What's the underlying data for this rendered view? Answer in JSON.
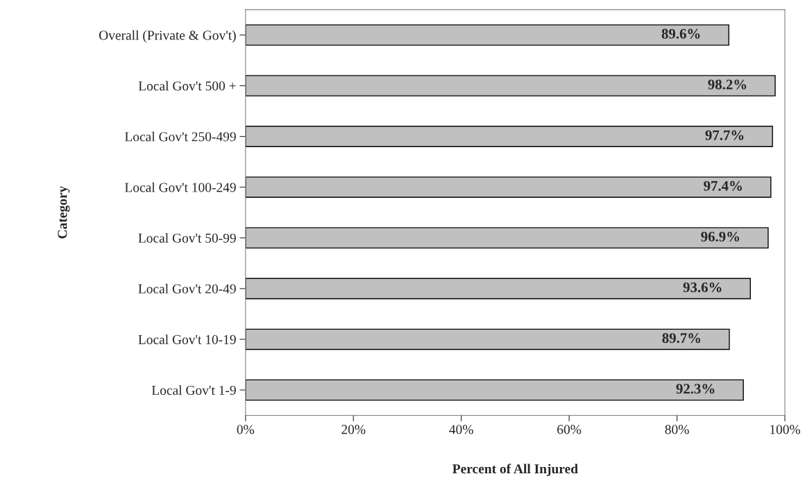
{
  "chart_data": {
    "type": "bar",
    "orientation": "horizontal",
    "xlabel": "Percent of All Injured",
    "ylabel": "Category",
    "categories": [
      "Overall (Private & Gov't)",
      "Local Gov't 500 +",
      "Local Gov't 250-499",
      "Local Gov't 100-249",
      "Local Gov't 50-99",
      "Local Gov't 20-49",
      "Local Gov't 10-19",
      "Local Gov't 1-9"
    ],
    "values": [
      89.6,
      98.2,
      97.7,
      97.4,
      96.9,
      93.6,
      89.7,
      92.3
    ],
    "value_labels": [
      "89.6%",
      "98.2%",
      "97.7%",
      "97.4%",
      "96.9%",
      "93.6%",
      "89.7%",
      "92.3%"
    ],
    "color": "#c0c0c0",
    "xlim": [
      0,
      100
    ],
    "xticks": [
      {
        "value": 0,
        "label": "0%"
      },
      {
        "value": 20,
        "label": "20%"
      },
      {
        "value": 40,
        "label": "40%"
      },
      {
        "value": 60,
        "label": "60%"
      },
      {
        "value": 80,
        "label": "80%"
      },
      {
        "value": 100,
        "label": "100%"
      }
    ],
    "grid": false,
    "legend": false
  }
}
